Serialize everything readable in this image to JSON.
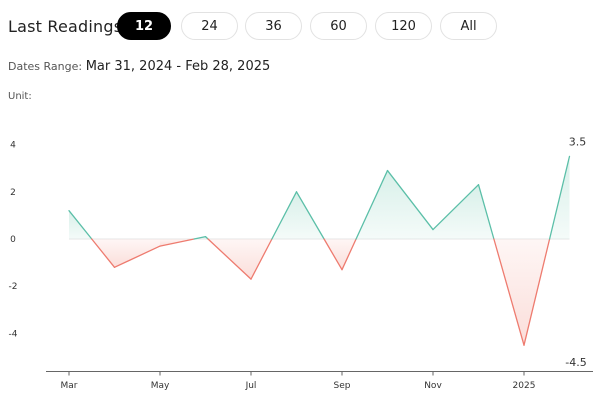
{
  "header": {
    "title": "Last Readings:",
    "periods": [
      {
        "label": "12",
        "active": true
      },
      {
        "label": "24",
        "active": false
      },
      {
        "label": "36",
        "active": false
      },
      {
        "label": "60",
        "active": false
      },
      {
        "label": "120",
        "active": false
      },
      {
        "label": "All",
        "active": false
      }
    ]
  },
  "dates": {
    "label": "Dates Range:",
    "value": "Mar 31, 2024 - Feb 28, 2025"
  },
  "unit_label": "Unit:",
  "colors": {
    "positive_line": "#5bbfa8",
    "negative_line": "#ee7b6f",
    "positive_fill": "#d6efe8",
    "negative_fill": "#fbdcd8",
    "active_pill": "#000000"
  },
  "chart_data": {
    "type": "area",
    "x": [
      "Mar 2024",
      "Apr 2024",
      "May 2024",
      "Jun 2024",
      "Jul 2024",
      "Aug 2024",
      "Sep 2024",
      "Oct 2024",
      "Nov 2024",
      "Dec 2024",
      "Jan 2025",
      "Feb 2025"
    ],
    "values": [
      1.2,
      -1.2,
      -0.3,
      0.1,
      -1.7,
      2.0,
      -1.3,
      2.9,
      0.4,
      2.3,
      -4.5,
      3.5
    ],
    "ylim": [
      -5.5,
      4.6
    ],
    "yticks": [
      "4",
      "2",
      "0",
      "-2",
      "-4"
    ],
    "ytick_values": [
      4,
      2,
      0,
      -2,
      -4
    ],
    "xticks": [
      "Mar",
      "May",
      "Jul",
      "Sep",
      "Nov",
      "2025"
    ],
    "xtick_indices": [
      0,
      2,
      4,
      6,
      8,
      10
    ],
    "annotations": {
      "max": "3.5",
      "min": "-4.5"
    },
    "xlabel": "",
    "ylabel": ""
  }
}
